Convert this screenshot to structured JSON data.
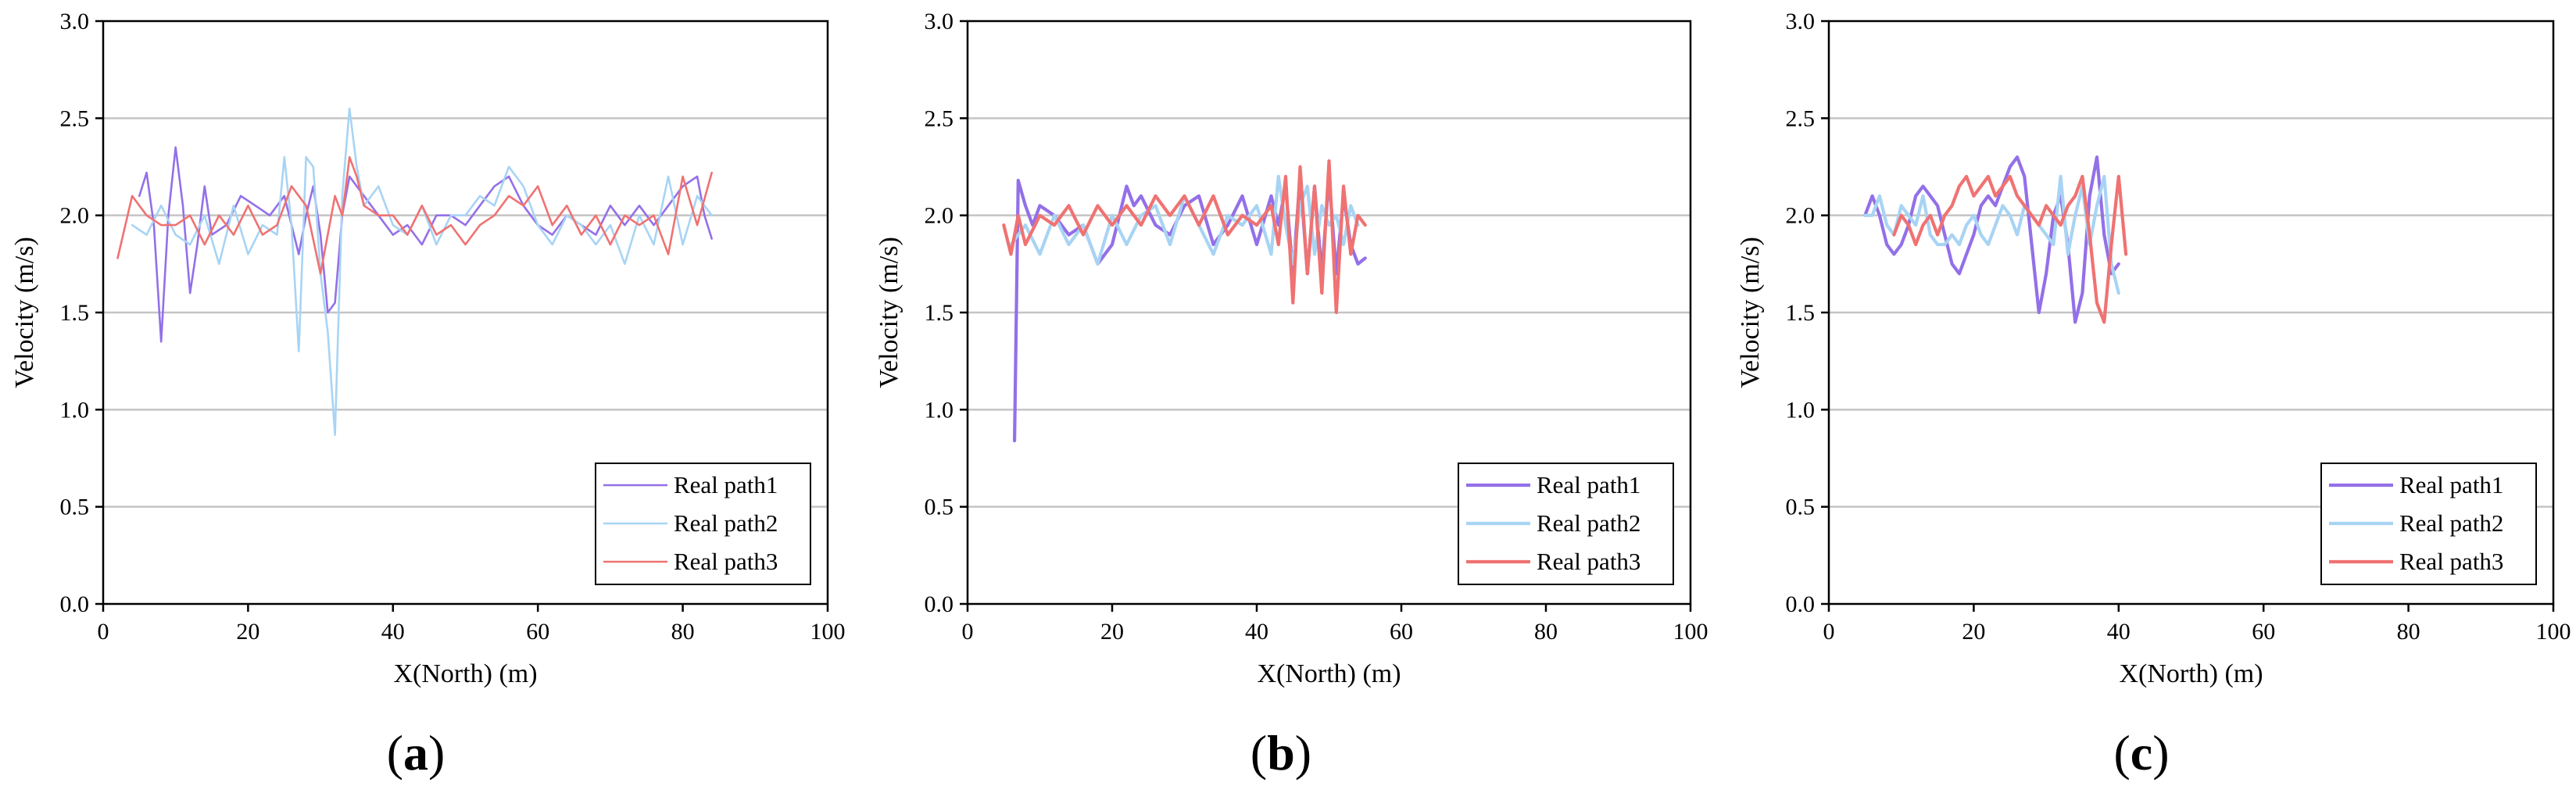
{
  "chart_data": [
    {
      "type": "line",
      "panel_label": {
        "open": "(",
        "letter": "a",
        "close": ")"
      },
      "xlabel": "X(North) (m)",
      "ylabel": "Velocity (m/s)",
      "xlim": [
        0,
        100
      ],
      "ylim": [
        0,
        3.0
      ],
      "xticks": [
        "0",
        "20",
        "40",
        "60",
        "80",
        "100"
      ],
      "yticks": [
        "0.0",
        "0.5",
        "1.0",
        "1.5",
        "2.0",
        "2.5",
        "3.0"
      ],
      "grid": "horizontal",
      "legend_position": "bottom-right",
      "series": [
        {
          "name": "Real path1",
          "color": "#9370e8",
          "x": [
            5,
            6,
            7,
            8,
            9,
            10,
            11,
            12,
            13,
            14,
            15,
            17,
            19,
            21,
            23,
            25,
            27,
            28,
            29,
            30,
            31,
            32,
            33,
            34,
            36,
            38,
            40,
            42,
            44,
            46,
            48,
            50,
            52,
            54,
            56,
            58,
            60,
            62,
            64,
            66,
            68,
            70,
            72,
            74,
            76,
            78,
            80,
            82,
            83,
            84
          ],
          "y": [
            2.1,
            2.22,
            1.95,
            1.35,
            2.0,
            2.35,
            2.05,
            1.6,
            1.85,
            2.15,
            1.9,
            1.95,
            2.1,
            2.05,
            2.0,
            2.1,
            1.8,
            2.0,
            2.15,
            1.9,
            1.5,
            1.55,
            2.0,
            2.2,
            2.1,
            2.0,
            1.9,
            1.95,
            1.85,
            2.0,
            2.0,
            1.95,
            2.05,
            2.15,
            2.2,
            2.05,
            1.95,
            1.9,
            2.0,
            1.95,
            1.9,
            2.05,
            1.95,
            2.05,
            1.95,
            2.05,
            2.15,
            2.2,
            2.0,
            1.88
          ]
        },
        {
          "name": "Real path2",
          "color": "#a8d4f4",
          "x": [
            4,
            6,
            8,
            10,
            12,
            14,
            16,
            18,
            20,
            22,
            24,
            25,
            26,
            27,
            28,
            29,
            30,
            31,
            32,
            33,
            34,
            35,
            36,
            38,
            40,
            42,
            44,
            46,
            48,
            50,
            52,
            54,
            56,
            58,
            60,
            62,
            64,
            66,
            68,
            70,
            72,
            74,
            76,
            78,
            80,
            82,
            84
          ],
          "y": [
            1.95,
            1.9,
            2.05,
            1.9,
            1.85,
            2.0,
            1.75,
            2.05,
            1.8,
            1.95,
            1.9,
            2.3,
            1.95,
            1.3,
            2.3,
            2.25,
            1.7,
            1.4,
            0.87,
            2.1,
            2.55,
            2.25,
            2.05,
            2.15,
            1.95,
            1.9,
            2.05,
            1.85,
            2.0,
            2.0,
            2.1,
            2.05,
            2.25,
            2.15,
            1.95,
            1.85,
            2.0,
            1.95,
            1.85,
            1.95,
            1.75,
            2.0,
            1.85,
            2.2,
            1.85,
            2.1,
            2.0
          ]
        },
        {
          "name": "Real path3",
          "color": "#f07272",
          "x": [
            2,
            4,
            6,
            8,
            10,
            12,
            14,
            16,
            18,
            20,
            22,
            24,
            26,
            28,
            30,
            32,
            33,
            34,
            35,
            36,
            38,
            40,
            42,
            44,
            46,
            48,
            50,
            52,
            54,
            56,
            58,
            60,
            62,
            64,
            66,
            68,
            70,
            72,
            74,
            76,
            78,
            80,
            82,
            84
          ],
          "y": [
            1.78,
            2.1,
            2.0,
            1.95,
            1.95,
            2.0,
            1.85,
            2.0,
            1.9,
            2.05,
            1.9,
            1.95,
            2.15,
            2.05,
            1.7,
            2.1,
            2.0,
            2.3,
            2.2,
            2.05,
            2.0,
            2.0,
            1.9,
            2.05,
            1.9,
            1.95,
            1.85,
            1.95,
            2.0,
            2.1,
            2.05,
            2.15,
            1.95,
            2.05,
            1.9,
            2.0,
            1.85,
            2.0,
            1.95,
            2.0,
            1.8,
            2.2,
            1.95,
            2.22
          ]
        }
      ]
    },
    {
      "type": "line",
      "panel_label": {
        "open": "(",
        "letter": "b",
        "close": ")"
      },
      "xlabel": "X(North) (m)",
      "ylabel": "Velocity (m/s)",
      "xlim": [
        0,
        100
      ],
      "ylim": [
        0,
        3.0
      ],
      "xticks": [
        "0",
        "20",
        "40",
        "60",
        "80",
        "100"
      ],
      "yticks": [
        "0.0",
        "0.5",
        "1.0",
        "1.5",
        "2.0",
        "2.5",
        "3.0"
      ],
      "grid": "horizontal",
      "legend_position": "bottom-right",
      "series": [
        {
          "name": "Real path1",
          "color": "#9370e8",
          "x": [
            6.5,
            7,
            8,
            9,
            10,
            12,
            14,
            16,
            18,
            20,
            21,
            22,
            23,
            24,
            26,
            28,
            30,
            32,
            34,
            36,
            38,
            40,
            42,
            43,
            44,
            45,
            46,
            47,
            48,
            49,
            50,
            51,
            52,
            53,
            54,
            55
          ],
          "y": [
            0.84,
            2.18,
            2.05,
            1.95,
            2.05,
            2.0,
            1.9,
            1.95,
            1.75,
            1.85,
            2.0,
            2.15,
            2.05,
            2.1,
            1.95,
            1.9,
            2.05,
            2.1,
            1.85,
            1.95,
            2.1,
            1.85,
            2.1,
            1.95,
            2.15,
            1.7,
            2.2,
            1.7,
            2.15,
            1.7,
            2.2,
            1.7,
            2.1,
            1.85,
            1.75,
            1.78
          ]
        },
        {
          "name": "Real path2",
          "color": "#a8d4f4",
          "x": [
            6,
            8,
            10,
            12,
            14,
            16,
            18,
            20,
            22,
            24,
            26,
            28,
            30,
            32,
            34,
            36,
            38,
            40,
            42,
            43,
            44,
            45,
            46,
            47,
            48,
            49,
            50,
            51,
            52,
            53,
            54
          ],
          "y": [
            1.85,
            1.95,
            1.8,
            2.0,
            1.85,
            1.95,
            1.75,
            2.0,
            1.85,
            2.0,
            2.05,
            1.85,
            2.1,
            1.95,
            1.8,
            2.0,
            1.95,
            2.05,
            1.8,
            2.2,
            1.95,
            1.75,
            2.05,
            2.15,
            1.8,
            2.05,
            1.95,
            2.0,
            1.85,
            2.05,
            1.95
          ]
        },
        {
          "name": "Real path3",
          "color": "#f07272",
          "x": [
            5,
            6,
            7,
            8,
            10,
            12,
            14,
            16,
            18,
            20,
            22,
            24,
            26,
            28,
            30,
            32,
            34,
            36,
            38,
            40,
            42,
            43,
            44,
            45,
            46,
            47,
            48,
            49,
            50,
            51,
            52,
            53,
            54,
            55
          ],
          "y": [
            1.95,
            1.8,
            2.0,
            1.85,
            2.0,
            1.95,
            2.05,
            1.9,
            2.05,
            1.95,
            2.05,
            1.95,
            2.1,
            2.0,
            2.1,
            1.95,
            2.1,
            1.9,
            2.0,
            1.95,
            2.05,
            1.85,
            2.2,
            1.55,
            2.25,
            1.7,
            2.15,
            1.6,
            2.28,
            1.5,
            2.15,
            1.8,
            2.0,
            1.95
          ]
        }
      ]
    },
    {
      "type": "line",
      "panel_label": {
        "open": "(",
        "letter": "c",
        "close": ")"
      },
      "xlabel": "X(North) (m)",
      "ylabel": "Velocity (m/s)",
      "xlim": [
        0,
        100
      ],
      "ylim": [
        0,
        3.0
      ],
      "xticks": [
        "0",
        "20",
        "40",
        "60",
        "80",
        "100"
      ],
      "yticks": [
        "0.0",
        "0.5",
        "1.0",
        "1.5",
        "2.0",
        "2.5",
        "3.0"
      ],
      "grid": "horizontal",
      "legend_position": "bottom-right",
      "series": [
        {
          "name": "Real path1",
          "color": "#9370e8",
          "x": [
            5,
            6,
            7,
            8,
            9,
            10,
            11,
            12,
            13,
            14,
            15,
            16,
            17,
            18,
            19,
            20,
            21,
            22,
            23,
            24,
            25,
            26,
            27,
            28,
            29,
            30,
            31,
            32,
            33,
            34,
            35,
            36,
            37,
            38,
            39,
            40
          ],
          "y": [
            2.0,
            2.1,
            2.0,
            1.85,
            1.8,
            1.85,
            1.95,
            2.1,
            2.15,
            2.1,
            2.05,
            1.9,
            1.75,
            1.7,
            1.8,
            1.9,
            2.05,
            2.1,
            2.05,
            2.15,
            2.25,
            2.3,
            2.2,
            1.85,
            1.5,
            1.7,
            2.0,
            2.1,
            1.85,
            1.45,
            1.6,
            2.1,
            2.3,
            1.9,
            1.7,
            1.75
          ]
        },
        {
          "name": "Real path2",
          "color": "#a8d4f4",
          "x": [
            5,
            6,
            7,
            8,
            9,
            10,
            11,
            12,
            13,
            14,
            15,
            16,
            17,
            18,
            19,
            20,
            21,
            22,
            23,
            24,
            25,
            26,
            27,
            28,
            29,
            30,
            31,
            32,
            33,
            34,
            35,
            36,
            37,
            38,
            39,
            40
          ],
          "y": [
            2.0,
            2.0,
            2.1,
            1.95,
            1.9,
            2.05,
            2.0,
            1.95,
            2.1,
            1.9,
            1.85,
            1.85,
            1.9,
            1.85,
            1.95,
            2.0,
            1.9,
            1.85,
            1.95,
            2.05,
            2.0,
            1.9,
            2.05,
            2.0,
            1.95,
            1.9,
            1.85,
            2.2,
            1.8,
            2.0,
            2.15,
            1.85,
            2.05,
            2.2,
            1.75,
            1.6
          ]
        },
        {
          "name": "Real path3",
          "color": "#f07272",
          "x": [
            9,
            10,
            11,
            12,
            13,
            14,
            15,
            16,
            17,
            18,
            19,
            20,
            21,
            22,
            23,
            24,
            25,
            26,
            27,
            28,
            29,
            30,
            31,
            32,
            33,
            34,
            35,
            36,
            37,
            38,
            39,
            40,
            41
          ],
          "y": [
            1.9,
            2.0,
            1.95,
            1.85,
            1.95,
            2.0,
            1.9,
            2.0,
            2.05,
            2.15,
            2.2,
            2.1,
            2.15,
            2.2,
            2.1,
            2.15,
            2.2,
            2.1,
            2.05,
            2.0,
            1.95,
            2.05,
            2.0,
            1.95,
            2.05,
            2.1,
            2.2,
            1.9,
            1.55,
            1.45,
            1.85,
            2.2,
            1.8
          ]
        }
      ]
    }
  ]
}
